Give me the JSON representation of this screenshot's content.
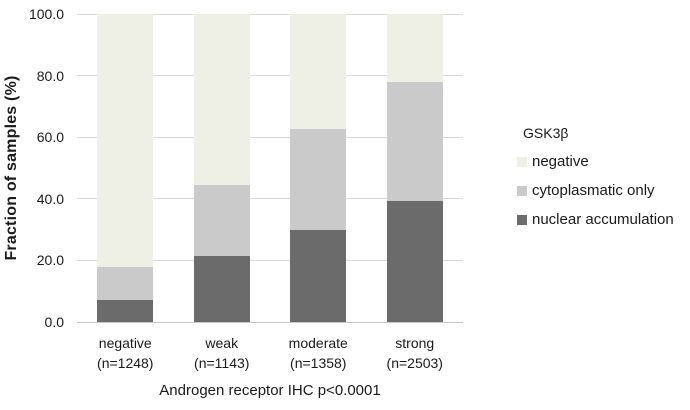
{
  "chart_data": {
    "type": "bar",
    "stacked": true,
    "title": "",
    "ylabel": "Fraction of samples (%)",
    "xlabel": "Androgen receptor IHC p<0.0001",
    "legend_title": "GSK3β",
    "legend_position": "right",
    "grid": true,
    "ylim": [
      0,
      100
    ],
    "ytick_values": [
      0,
      20,
      40,
      60,
      80,
      100
    ],
    "ytick_decimals": 1,
    "categories": [
      "negative",
      "weak",
      "moderate",
      "strong"
    ],
    "category_counts": [
      "(n=1248)",
      "(n=1143)",
      "(n=1358)",
      "(n=2503)"
    ],
    "series": [
      {
        "name": "nuclear accumulation",
        "color": "#6b6b6b",
        "values": [
          7.0,
          21.3,
          29.8,
          39.3
        ]
      },
      {
        "name": "cytoplasmatic only",
        "color": "#cacaca",
        "values": [
          10.7,
          23.1,
          33.0,
          38.7
        ]
      },
      {
        "name": "negative",
        "color": "#eeefe5",
        "values": [
          82.3,
          55.6,
          37.2,
          22.0
        ]
      }
    ],
    "legend_items": [
      {
        "label": "negative",
        "color": "#eeefe5"
      },
      {
        "label": "cytoplasmatic only",
        "color": "#cacaca"
      },
      {
        "label": "nuclear accumulation",
        "color": "#6b6b6b"
      }
    ],
    "colors": {
      "gridline": "#d9d9d9",
      "axis_line": "#c8c8c8",
      "text": "#1a1a1a",
      "background": "#ffffff"
    }
  }
}
